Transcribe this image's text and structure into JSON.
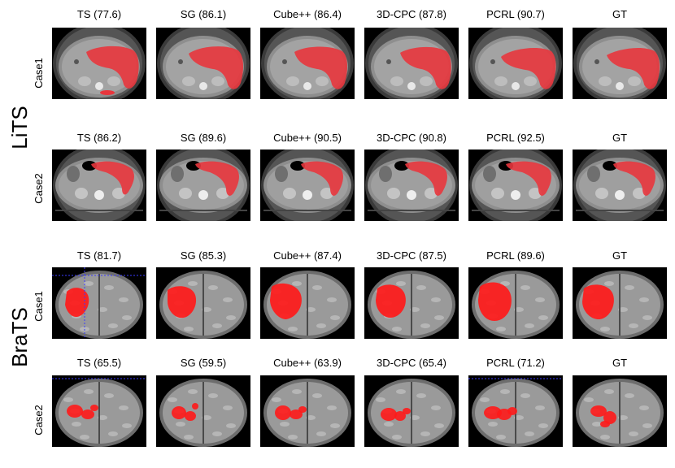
{
  "datasets": [
    {
      "name": "LiTS",
      "modality": "ct",
      "cases": [
        {
          "label": "Case1",
          "scan": "abdomen-a",
          "methods": [
            {
              "caption": "TS (77.6)"
            },
            {
              "caption": "SG (86.1)"
            },
            {
              "caption": "Cube++ (86.4)"
            },
            {
              "caption": "3D-CPC (87.8)"
            },
            {
              "caption": "PCRL (90.7)"
            },
            {
              "caption": "GT"
            }
          ]
        },
        {
          "label": "Case2",
          "scan": "abdomen-b",
          "methods": [
            {
              "caption": "TS (86.2)"
            },
            {
              "caption": "SG (89.6)"
            },
            {
              "caption": "Cube++ (90.5)"
            },
            {
              "caption": "3D-CPC (90.8)"
            },
            {
              "caption": "PCRL (92.5)"
            },
            {
              "caption": "GT"
            }
          ]
        }
      ]
    },
    {
      "name": "BraTS",
      "modality": "mri",
      "cases": [
        {
          "label": "Case1",
          "scan": "brain-a",
          "methods": [
            {
              "caption": "TS (81.7)"
            },
            {
              "caption": "SG (85.3)"
            },
            {
              "caption": "Cube++ (87.4)"
            },
            {
              "caption": "3D-CPC (87.5)"
            },
            {
              "caption": "PCRL (89.6)"
            },
            {
              "caption": "GT"
            }
          ]
        },
        {
          "label": "Case2",
          "scan": "brain-b",
          "methods": [
            {
              "caption": "TS (65.5)"
            },
            {
              "caption": "SG (59.5)"
            },
            {
              "caption": "Cube++ (63.9)"
            },
            {
              "caption": "3D-CPC (65.4)"
            },
            {
              "caption": "PCRL (71.2)"
            },
            {
              "caption": "GT"
            }
          ]
        }
      ]
    }
  ],
  "colors": {
    "segmentation": "#e8363d",
    "tumor": "#ff1a1a",
    "ct_body": "#8e8e8e",
    "mri_tissue": "#9a9a9a",
    "background": "#000000"
  }
}
